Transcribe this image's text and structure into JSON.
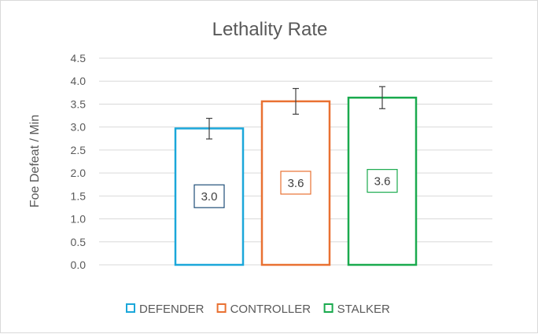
{
  "chart_data": {
    "type": "bar",
    "title": "Lethality Rate",
    "xlabel": "",
    "ylabel": "Foe Defeat / Min",
    "ylim": [
      0,
      4.5
    ],
    "ytick_step": 0.5,
    "grid": true,
    "legend_position": "bottom",
    "bar_style": "outlined",
    "series": [
      {
        "name": "DEFENDER",
        "value": 2.97,
        "label": "3.0",
        "error_low": 2.74,
        "error_high": 3.19,
        "color": "#1BA7DA",
        "label_color": "#1F4E79"
      },
      {
        "name": "CONTROLLER",
        "value": 3.56,
        "label": "3.6",
        "error_low": 3.28,
        "error_high": 3.84,
        "color": "#E97132",
        "label_color": "#E97132"
      },
      {
        "name": "STALKER",
        "value": 3.64,
        "label": "3.6",
        "error_low": 3.4,
        "error_high": 3.88,
        "color": "#1AAA4E",
        "label_color": "#1AAA4E"
      }
    ]
  }
}
